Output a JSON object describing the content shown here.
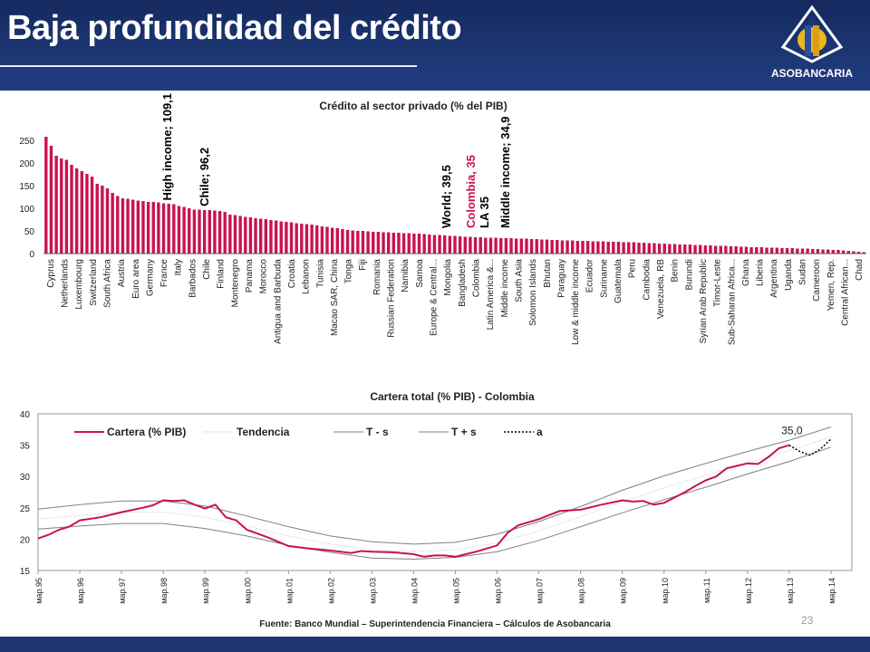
{
  "header": {
    "title": "Baja profundidad del crédito",
    "logo_text": "ASOBANCARIA",
    "logo_icon": "asobancaria-diamond-logo"
  },
  "footer": {
    "source": "Fuente: Banco Mundial – Superintendencia Financiera – Cálculos de Asobancaria",
    "page_number": "23"
  },
  "colors": {
    "header": "#1c3572",
    "bar": "#c8134f",
    "series": "#c8134f",
    "band": "#808080"
  },
  "chart_data": [
    {
      "type": "bar",
      "title": "Crédito al sector privado (% del PIB)",
      "ylim": [
        0,
        250
      ],
      "yticks": [
        0,
        50,
        100,
        150,
        200,
        250
      ],
      "tick_labels": [
        "Cyprus",
        "Netherlands",
        "Luxembourg",
        "Switzerland",
        "South Africa",
        "Austria",
        "Euro area",
        "Germany",
        "France",
        "Italy",
        "Barbados",
        "Chile",
        "Finland",
        "Montenegro",
        "Panama",
        "Morocco",
        "Antigua and Barbuda",
        "Croatia",
        "Lebanon",
        "Tunisia",
        "Macao SAR, China",
        "Tonga",
        "Fiji",
        "Romania",
        "Russian Federation",
        "Namibia",
        "Samoa",
        "Europe & Central...",
        "Mongolia",
        "Bangladesh",
        "Colombia",
        "Latin America &...",
        "Middle income",
        "South Asia",
        "Solomon Islands",
        "Bhutan",
        "Paraguay",
        "Low & middle income",
        "Ecuador",
        "Suriname",
        "Guatemala",
        "Peru",
        "Cambodia",
        "Venezuela, RB",
        "Benin",
        "Burundi",
        "Syrian Arab Republic",
        "Timor-Leste",
        "Sub-Saharan Africa...",
        "Ghana",
        "Liberia",
        "Argentina",
        "Uganda",
        "Sudan",
        "Cameroon",
        "Yemen, Rep.",
        "Central African...",
        "Chad"
      ],
      "values": [
        258,
        238,
        216,
        210,
        207,
        196,
        188,
        182,
        176,
        170,
        154,
        150,
        144,
        134,
        127,
        122,
        121,
        119,
        117,
        116,
        114,
        114,
        113,
        111,
        110,
        109,
        105,
        103,
        100,
        97,
        97,
        96,
        96,
        95,
        94,
        92,
        86,
        85,
        83,
        81,
        80,
        78,
        77,
        76,
        74,
        73,
        71,
        70,
        69,
        67,
        66,
        65,
        64,
        62,
        60,
        59,
        57,
        56,
        54,
        52,
        51,
        50,
        50,
        49,
        48,
        48,
        47,
        47,
        46,
        46,
        45,
        45,
        44,
        44,
        43,
        42,
        41,
        41,
        40,
        39,
        39,
        38,
        37,
        37,
        36,
        36,
        35,
        35,
        35,
        34,
        34,
        34,
        33,
        33,
        33,
        32,
        32,
        31,
        31,
        30,
        30,
        29,
        29,
        29,
        28,
        28,
        28,
        27,
        27,
        27,
        26,
        26,
        26,
        25,
        25,
        25,
        24,
        24,
        23,
        23,
        22,
        22,
        21,
        21,
        20,
        20,
        20,
        19,
        19,
        18,
        18,
        17,
        17,
        17,
        16,
        16,
        15,
        15,
        14,
        14,
        14,
        13,
        13,
        13,
        12,
        12,
        12,
        11,
        11,
        11,
        10,
        10,
        9,
        9,
        8,
        8,
        7,
        6,
        5,
        4,
        3
      ],
      "annotations": [
        {
          "text": "High income; 109,1",
          "value": 109.1,
          "color": "#000000"
        },
        {
          "text": "Chile; 96,2",
          "value": 96.2,
          "color": "#000000"
        },
        {
          "text": "World; 39,5",
          "value": 39.5,
          "color": "#000000"
        },
        {
          "text": "Colombia, 35",
          "value": 35,
          "color": "#c8134f"
        },
        {
          "text": "LA 35",
          "value": 35,
          "color": "#000000"
        },
        {
          "text": "Middle income; 34,9",
          "value": 34.9,
          "color": "#000000"
        }
      ]
    },
    {
      "type": "line",
      "title": "Cartera total (% PIB) - Colombia",
      "ylim": [
        15,
        40
      ],
      "yticks": [
        15,
        20,
        25,
        30,
        35,
        40
      ],
      "x_labels": [
        "мар.95",
        "мар.96",
        "мар.97",
        "мар.98",
        "мар.99",
        "мар.00",
        "мар.01",
        "мар.02",
        "мар.03",
        "мар.04",
        "мар.05",
        "мар.06",
        "мар.07",
        "мар.08",
        "мар.09",
        "мар.10",
        "мар.11",
        "мар.12",
        "мар.13",
        "мар.14"
      ],
      "legend": [
        "Cartera (% PIB)",
        "Tendencia",
        "T - s",
        "T + s",
        "a"
      ],
      "end_label": "35,0",
      "series": [
        {
          "name": "Cartera (% PIB)",
          "color": "#c8134f",
          "x": [
            1995.0,
            1995.25,
            1995.5,
            1995.75,
            1996.0,
            1996.5,
            1997.0,
            1997.5,
            1997.75,
            1998.0,
            1998.25,
            1998.5,
            1998.75,
            1999.0,
            1999.25,
            1999.5,
            1999.75,
            2000.0,
            2000.5,
            2001.0,
            2001.5,
            2002.0,
            2002.5,
            2002.75,
            2003.0,
            2003.5,
            2004.0,
            2004.25,
            2004.5,
            2004.75,
            2005.0,
            2005.5,
            2006.0,
            2006.25,
            2006.5,
            2007.0,
            2007.5,
            2008.0,
            2008.5,
            2009.0,
            2009.25,
            2009.5,
            2009.75,
            2010.0,
            2010.5,
            2010.75,
            2011.0,
            2011.25,
            2011.5,
            2011.75,
            2012.0,
            2012.25,
            2012.5,
            2012.75,
            2013.0
          ],
          "values": [
            20.1,
            20.7,
            21.5,
            22.0,
            23.0,
            23.5,
            24.3,
            25.0,
            25.4,
            26.2,
            26.1,
            26.2,
            25.5,
            24.9,
            25.5,
            23.5,
            23.0,
            21.5,
            20.3,
            18.9,
            18.5,
            18.2,
            17.8,
            18.1,
            18.0,
            17.9,
            17.6,
            17.2,
            17.4,
            17.4,
            17.2,
            18.0,
            19.0,
            21.0,
            22.2,
            23.2,
            24.5,
            24.7,
            25.5,
            26.2,
            26.0,
            26.1,
            25.5,
            25.8,
            27.5,
            28.5,
            29.4,
            30.0,
            31.3,
            31.7,
            32.1,
            32.0,
            33.1,
            34.5,
            35.0
          ]
        },
        {
          "name": "a",
          "color": "#000000",
          "x": [
            2013.0,
            2013.25,
            2013.5,
            2013.75,
            2014.0
          ],
          "values": [
            35.0,
            34.0,
            33.4,
            34.4,
            36.0
          ]
        }
      ],
      "trend_band": {
        "x": [
          1995,
          1996,
          1997,
          1998,
          1999,
          2000,
          2001,
          2002,
          2003,
          2004,
          2005,
          2006,
          2007,
          2008,
          2009,
          2010,
          2011,
          2012,
          2013,
          2014
        ],
        "values": [
          23.2,
          23.8,
          24.3,
          24.3,
          23.5,
          22.1,
          20.5,
          19.2,
          18.3,
          18.0,
          18.3,
          19.4,
          21.3,
          23.6,
          26.0,
          28.2,
          30.2,
          32.2,
          34.1,
          36.3
        ],
        "s": [
          1.6,
          1.7,
          1.8,
          1.8,
          1.8,
          1.6,
          1.5,
          1.3,
          1.3,
          1.2,
          1.2,
          1.4,
          1.5,
          1.6,
          1.8,
          1.9,
          1.9,
          1.8,
          1.7,
          1.6
        ]
      }
    }
  ]
}
